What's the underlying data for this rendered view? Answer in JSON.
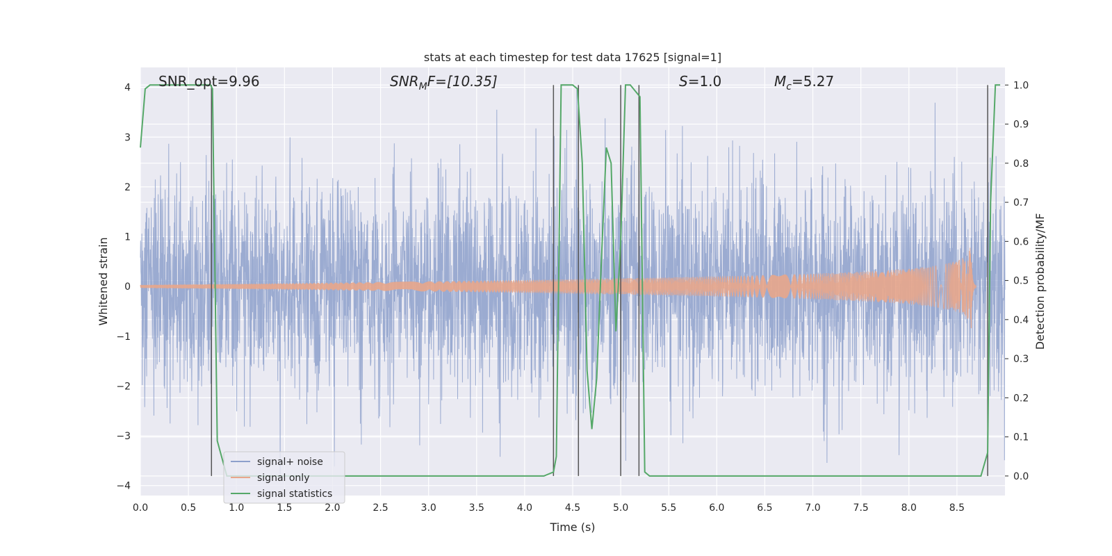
{
  "chart_data": {
    "type": "line",
    "title": "stats at each timestep for test data 17625 [signal=1]",
    "xlabel": "Time (s)",
    "ylabel": "Whitened strain",
    "ylabel_right": "Detection probability/MF",
    "xlim": [
      0.0,
      9.0
    ],
    "ylim": [
      -4.2,
      4.4
    ],
    "ylim_right": [
      -0.05,
      1.045
    ],
    "x_ticks": [
      "0.0",
      "0.5",
      "1.0",
      "1.5",
      "2.0",
      "2.5",
      "3.0",
      "3.5",
      "4.0",
      "4.5",
      "5.0",
      "5.5",
      "6.0",
      "6.5",
      "7.0",
      "7.5",
      "8.0",
      "8.5"
    ],
    "y_ticks": [
      "4",
      "3",
      "2",
      "1",
      "0",
      "−1",
      "−2",
      "−3",
      "−4"
    ],
    "y_ticks_right": [
      "1.0",
      "0.9",
      "0.8",
      "0.7",
      "0.6",
      "0.5",
      "0.4",
      "0.3",
      "0.2",
      "0.1",
      "0.0"
    ],
    "grid": true,
    "legend_position": "lower-left",
    "annotations": {
      "snr_opt": "SNR_opt=9.96",
      "snr_mf_main": "SNR",
      "snr_mf_sub": "M",
      "snr_mf_rest": "F=[10.35]",
      "s_main": "S",
      "s_rest": "=1.0",
      "mc_main": "M",
      "mc_sub": "c",
      "mc_rest": "=5.27"
    },
    "series": [
      {
        "name": "signal+ noise",
        "color": "#8da0cb",
        "description_axis": "left",
        "noise_std": 1.0,
        "x_range": [
          0.0,
          9.0
        ]
      },
      {
        "name": "signal only",
        "color": "#e8a68b",
        "description_axis": "left",
        "amplitude_start": 0.03,
        "amplitude_end": 1.0,
        "merger_time": 8.65,
        "x_range": [
          0.0,
          8.7
        ]
      },
      {
        "name": "signal statistics",
        "color": "#55a868",
        "description_axis": "right",
        "x": [
          0.0,
          0.05,
          0.1,
          0.2,
          0.3,
          0.4,
          0.5,
          0.6,
          0.7,
          0.73,
          0.75,
          0.8,
          0.9,
          1.0,
          1.5,
          2.0,
          2.5,
          3.0,
          3.5,
          4.0,
          4.2,
          4.3,
          4.33,
          4.38,
          4.45,
          4.5,
          4.55,
          4.6,
          4.65,
          4.7,
          4.75,
          4.8,
          4.85,
          4.9,
          4.95,
          5.0,
          5.05,
          5.1,
          5.2,
          5.25,
          5.3,
          5.5,
          6.0,
          6.5,
          7.0,
          7.5,
          8.0,
          8.5,
          8.75,
          8.82,
          8.85,
          8.9,
          8.95
        ],
        "y": [
          0.84,
          0.99,
          1.0,
          1.0,
          1.0,
          1.0,
          1.0,
          1.0,
          1.0,
          1.0,
          0.99,
          0.09,
          0.0,
          0.0,
          0.0,
          0.0,
          0.0,
          0.0,
          0.0,
          0.0,
          0.0,
          0.01,
          0.05,
          1.0,
          1.0,
          1.0,
          0.99,
          0.8,
          0.27,
          0.12,
          0.25,
          0.56,
          0.84,
          0.8,
          0.37,
          0.6,
          1.0,
          1.0,
          0.97,
          0.01,
          0.0,
          0.0,
          0.0,
          0.0,
          0.0,
          0.0,
          0.0,
          0.0,
          0.0,
          0.06,
          0.7,
          1.0,
          1.0
        ]
      }
    ],
    "vertical_lines": [
      0.74,
      4.3,
      4.56,
      5.0,
      5.19,
      8.82
    ]
  },
  "legend": {
    "items": [
      {
        "label": "signal+ noise",
        "color": "#8da0cb"
      },
      {
        "label": "signal only",
        "color": "#e8a68b"
      },
      {
        "label": "signal statistics",
        "color": "#55a868"
      }
    ]
  }
}
